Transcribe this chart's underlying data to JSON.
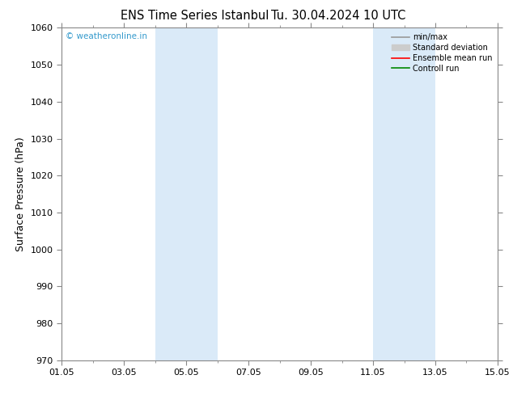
{
  "title_left": "ENS Time Series Istanbul",
  "title_right": "Tu. 30.04.2024 10 UTC",
  "ylabel": "Surface Pressure (hPa)",
  "ylim": [
    970,
    1060
  ],
  "yticks": [
    970,
    980,
    990,
    1000,
    1010,
    1020,
    1030,
    1040,
    1050,
    1060
  ],
  "xlim_num": [
    0,
    14
  ],
  "xtick_positions": [
    0,
    2,
    4,
    6,
    8,
    10,
    12,
    14
  ],
  "xtick_labels": [
    "01.05",
    "03.05",
    "05.05",
    "07.05",
    "09.05",
    "11.05",
    "13.05",
    "15.05"
  ],
  "shade_bands": [
    {
      "xmin": 3.0,
      "xmax": 4.0
    },
    {
      "xmin": 4.0,
      "xmax": 5.0
    },
    {
      "xmin": 10.0,
      "xmax": 11.0
    },
    {
      "xmin": 11.0,
      "xmax": 12.0
    }
  ],
  "shade_color": "#daeaf8",
  "watermark": "© weatheronline.in",
  "watermark_color": "#3399cc",
  "legend_items": [
    {
      "label": "min/max",
      "color": "#999999",
      "lw": 1.2,
      "type": "line"
    },
    {
      "label": "Standard deviation",
      "color": "#cccccc",
      "lw": 8,
      "type": "rect"
    },
    {
      "label": "Ensemble mean run",
      "color": "#ff0000",
      "lw": 1.2,
      "type": "line"
    },
    {
      "label": "Controll run",
      "color": "#008800",
      "lw": 1.2,
      "type": "line"
    }
  ],
  "background_color": "#ffffff",
  "spine_color": "#888888",
  "figsize": [
    6.34,
    4.9
  ],
  "dpi": 100
}
